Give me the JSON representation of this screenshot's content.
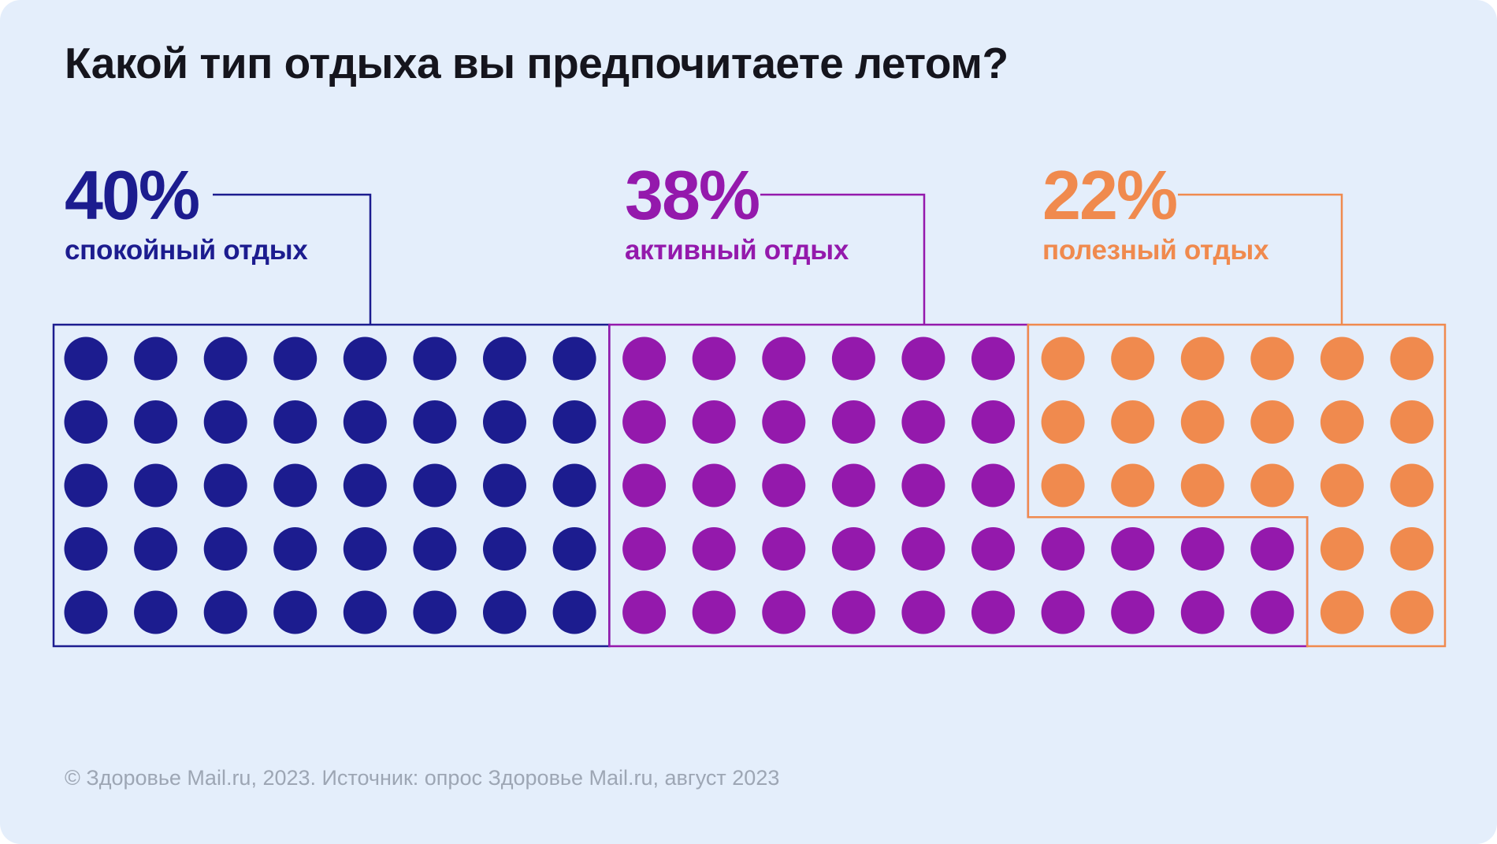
{
  "title": "Какой тип отдыха вы предпочитаете летом?",
  "chart_data": {
    "type": "waffle",
    "title": "Какой тип отдыха вы предпочитаете летом?",
    "total_dots": 100,
    "percent_per_dot": 1,
    "rows": 5,
    "columns": 20,
    "series": [
      {
        "key": "quiet-rest",
        "name": "спокойный отдых",
        "value_pct": 40,
        "value_label": "40%",
        "color": "#1C1C8F",
        "dots_per_row": [
          8,
          8,
          8,
          8,
          8
        ]
      },
      {
        "key": "active-rest",
        "name": "активный отдых",
        "value_pct": 38,
        "value_label": "38%",
        "color": "#9419AC",
        "dots_per_row": [
          6,
          6,
          6,
          10,
          10
        ]
      },
      {
        "key": "useful-rest",
        "name": "полезный отдых",
        "value_pct": 22,
        "value_label": "22%",
        "color": "#F08A4E",
        "dots_per_row": [
          6,
          6,
          6,
          2,
          2
        ]
      }
    ],
    "legend_position": "top",
    "grid": "off"
  },
  "footer": {
    "source": "© Здоровье Mail.ru, 2023. Источник: опрос Здоровье Mail.ru, август 2023"
  }
}
